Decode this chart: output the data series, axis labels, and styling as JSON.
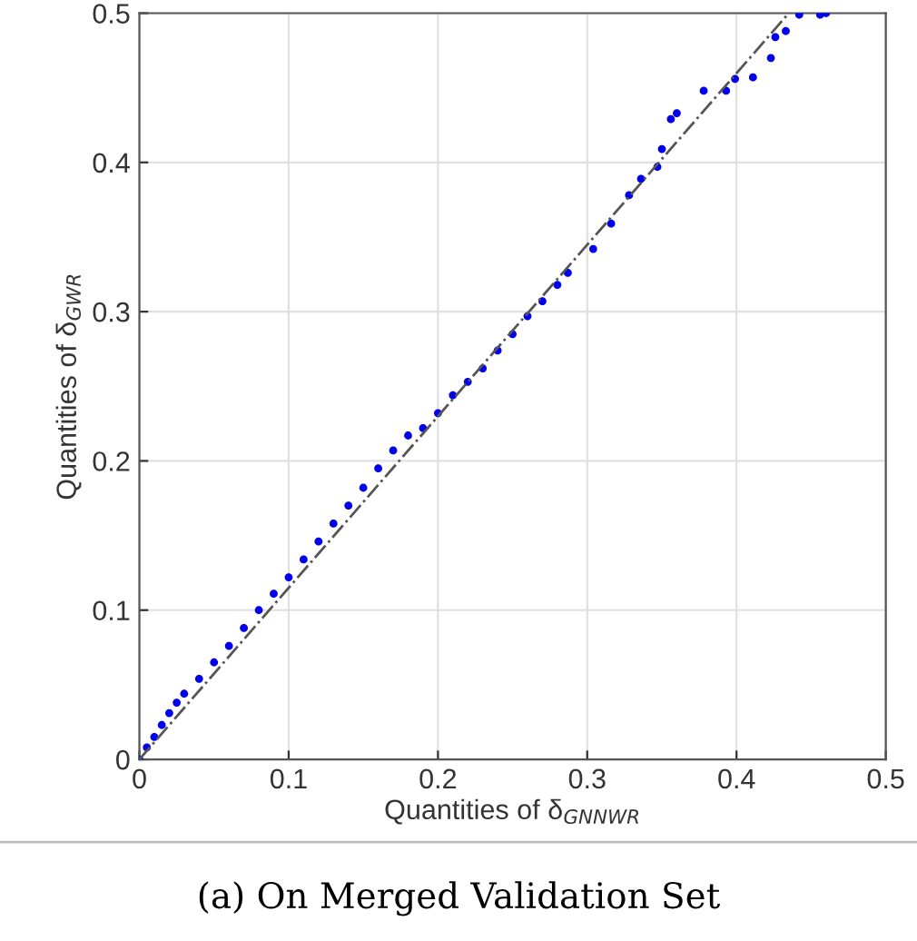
{
  "chart_data": {
    "type": "scatter",
    "xlabel": "Quantities of δ$_{GNNWR}$",
    "ylabel": "Quantities of δ$_{GWR}$",
    "annotations": [
      "(a) On Merged Validation Set"
    ],
    "xlim": [
      0,
      0.5
    ],
    "ylim": [
      0,
      0.5
    ],
    "xticks": [
      0,
      0.1,
      0.2,
      0.3,
      0.4,
      0.5
    ],
    "yticks": [
      0,
      0.1,
      0.2,
      0.3,
      0.4,
      0.5
    ],
    "grid": true,
    "marker": "circle",
    "series": [
      {
        "color": "#0000ee",
        "x": [
          0,
          0.005,
          0.01,
          0.015,
          0.02,
          0.025,
          0.03,
          0.04,
          0.05,
          0.06,
          0.07,
          0.08,
          0.09,
          0.1,
          0.11,
          0.12,
          0.13,
          0.14,
          0.15,
          0.16,
          0.17,
          0.18,
          0.19,
          0.2,
          0.21,
          0.22,
          0.23,
          0.24,
          0.25,
          0.26,
          0.27,
          0.28,
          0.287,
          0.304,
          0.316,
          0.328,
          0.336,
          0.347,
          0.35,
          0.356,
          0.36,
          0.378,
          0.393,
          0.399,
          0.411,
          0.423,
          0.426,
          0.433,
          0.442,
          0.456,
          0.46
        ],
        "values": [
          0,
          0.008,
          0.015,
          0.023,
          0.031,
          0.038,
          0.044,
          0.054,
          0.065,
          0.076,
          0.088,
          0.1,
          0.111,
          0.122,
          0.134,
          0.146,
          0.158,
          0.17,
          0.182,
          0.195,
          0.207,
          0.217,
          0.222,
          0.232,
          0.244,
          0.253,
          0.262,
          0.274,
          0.285,
          0.297,
          0.307,
          0.318,
          0.326,
          0.342,
          0.359,
          0.378,
          0.389,
          0.397,
          0.409,
          0.429,
          0.433,
          0.448,
          0.448,
          0.456,
          0.457,
          0.47,
          0.484,
          0.488,
          0.499,
          0.499,
          0.5
        ]
      },
      {
        "type": "line",
        "color": "#555555",
        "line_style": "dashdot",
        "marker": "none",
        "x": [
          0,
          0.435
        ],
        "values": [
          0,
          0.5
        ]
      }
    ]
  }
}
